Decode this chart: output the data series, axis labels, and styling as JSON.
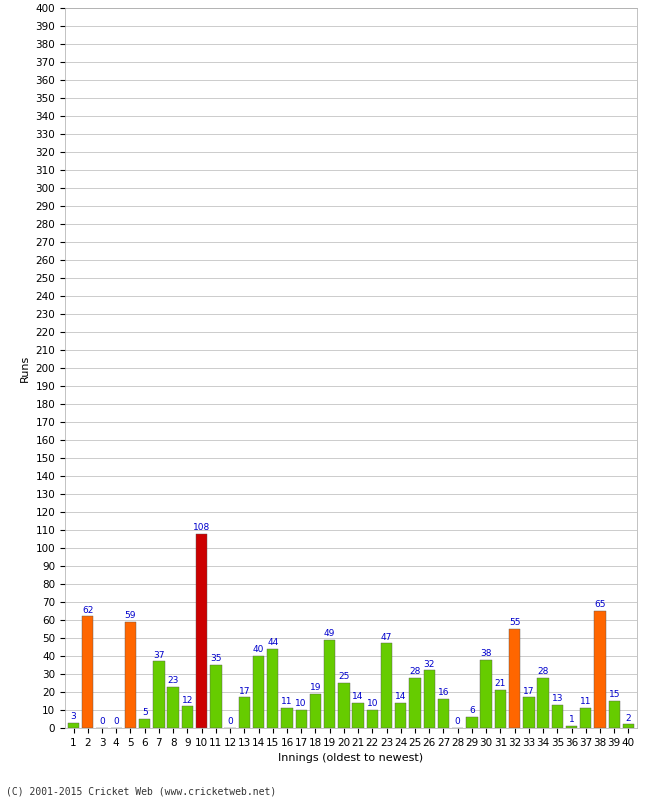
{
  "title": "",
  "xlabel": "Innings (oldest to newest)",
  "ylabel": "Runs",
  "footer": "(C) 2001-2015 Cricket Web (www.cricketweb.net)",
  "ylim": [
    0,
    400
  ],
  "yticks": [
    0,
    10,
    20,
    30,
    40,
    50,
    60,
    70,
    80,
    90,
    100,
    110,
    120,
    130,
    140,
    150,
    160,
    170,
    180,
    190,
    200,
    210,
    220,
    230,
    240,
    250,
    260,
    270,
    280,
    290,
    300,
    310,
    320,
    330,
    340,
    350,
    360,
    370,
    380,
    390,
    400
  ],
  "innings": [
    1,
    2,
    3,
    4,
    5,
    6,
    7,
    8,
    9,
    10,
    11,
    12,
    13,
    14,
    15,
    16,
    17,
    18,
    19,
    20,
    21,
    22,
    23,
    24,
    25,
    26,
    27,
    28,
    29,
    30,
    31,
    32,
    33,
    34,
    35,
    36,
    37,
    38,
    39,
    40
  ],
  "values": [
    3,
    62,
    0,
    0,
    59,
    5,
    37,
    23,
    12,
    108,
    35,
    0,
    17,
    40,
    44,
    11,
    10,
    19,
    49,
    25,
    14,
    10,
    47,
    14,
    28,
    32,
    16,
    0,
    6,
    38,
    21,
    55,
    17,
    28,
    13,
    1,
    11,
    65,
    15,
    2
  ],
  "colors": [
    "#66cc00",
    "#ff6600",
    "#66cc00",
    "#66cc00",
    "#ff6600",
    "#66cc00",
    "#66cc00",
    "#66cc00",
    "#66cc00",
    "#cc0000",
    "#66cc00",
    "#66cc00",
    "#66cc00",
    "#66cc00",
    "#66cc00",
    "#66cc00",
    "#66cc00",
    "#66cc00",
    "#66cc00",
    "#66cc00",
    "#66cc00",
    "#66cc00",
    "#66cc00",
    "#66cc00",
    "#66cc00",
    "#66cc00",
    "#66cc00",
    "#66cc00",
    "#66cc00",
    "#66cc00",
    "#66cc00",
    "#ff6600",
    "#66cc00",
    "#66cc00",
    "#66cc00",
    "#66cc00",
    "#66cc00",
    "#ff6600",
    "#66cc00",
    "#66cc00"
  ],
  "bg_color": "#ffffff",
  "grid_color": "#cccccc",
  "label_color": "#0000cc",
  "bar_edge_color": "#555555",
  "footer_color": "#333333",
  "axis_label_fontsize": 8,
  "tick_fontsize": 7.5,
  "value_label_fontsize": 6.5,
  "footer_fontsize": 7,
  "bar_width": 0.8
}
